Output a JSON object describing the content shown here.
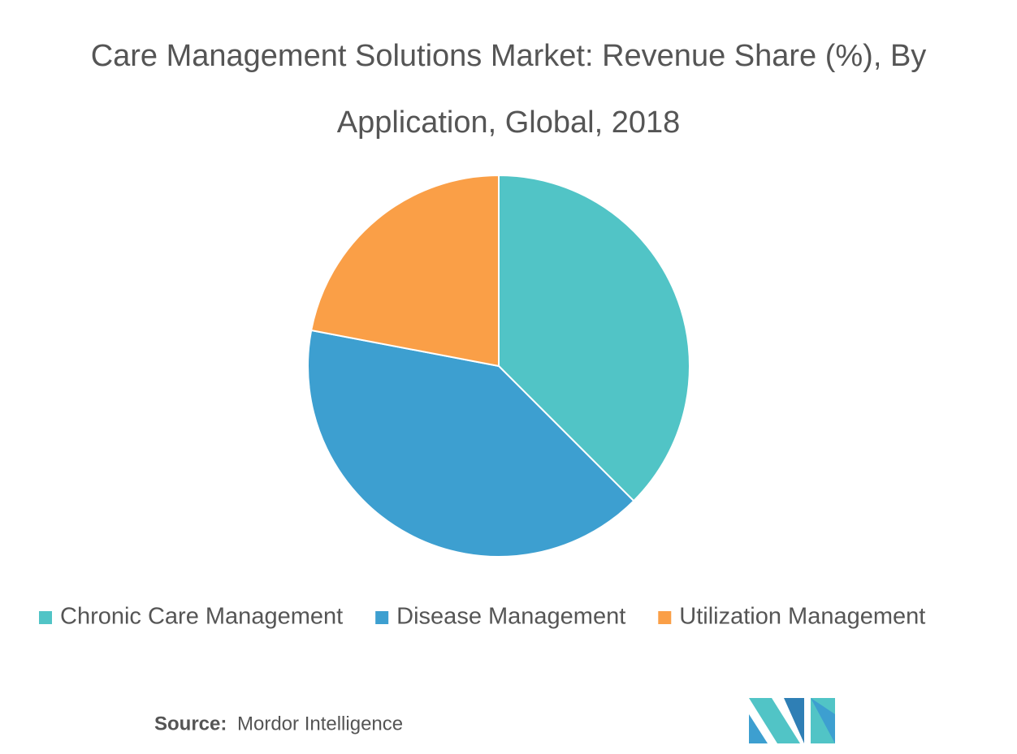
{
  "chart_data": {
    "type": "pie",
    "title": "Care Management Solutions Market: Revenue Share (%), By Application, Global, 2018",
    "categories": [
      "Chronic Care Management",
      "Disease Management",
      "Utilization Management"
    ],
    "values": [
      37.5,
      40.5,
      22
    ],
    "colors": [
      "#51c4c6",
      "#3d9fd0",
      "#fa9f47"
    ],
    "source_label": "Source:",
    "source": "Mordor Intelligence"
  }
}
